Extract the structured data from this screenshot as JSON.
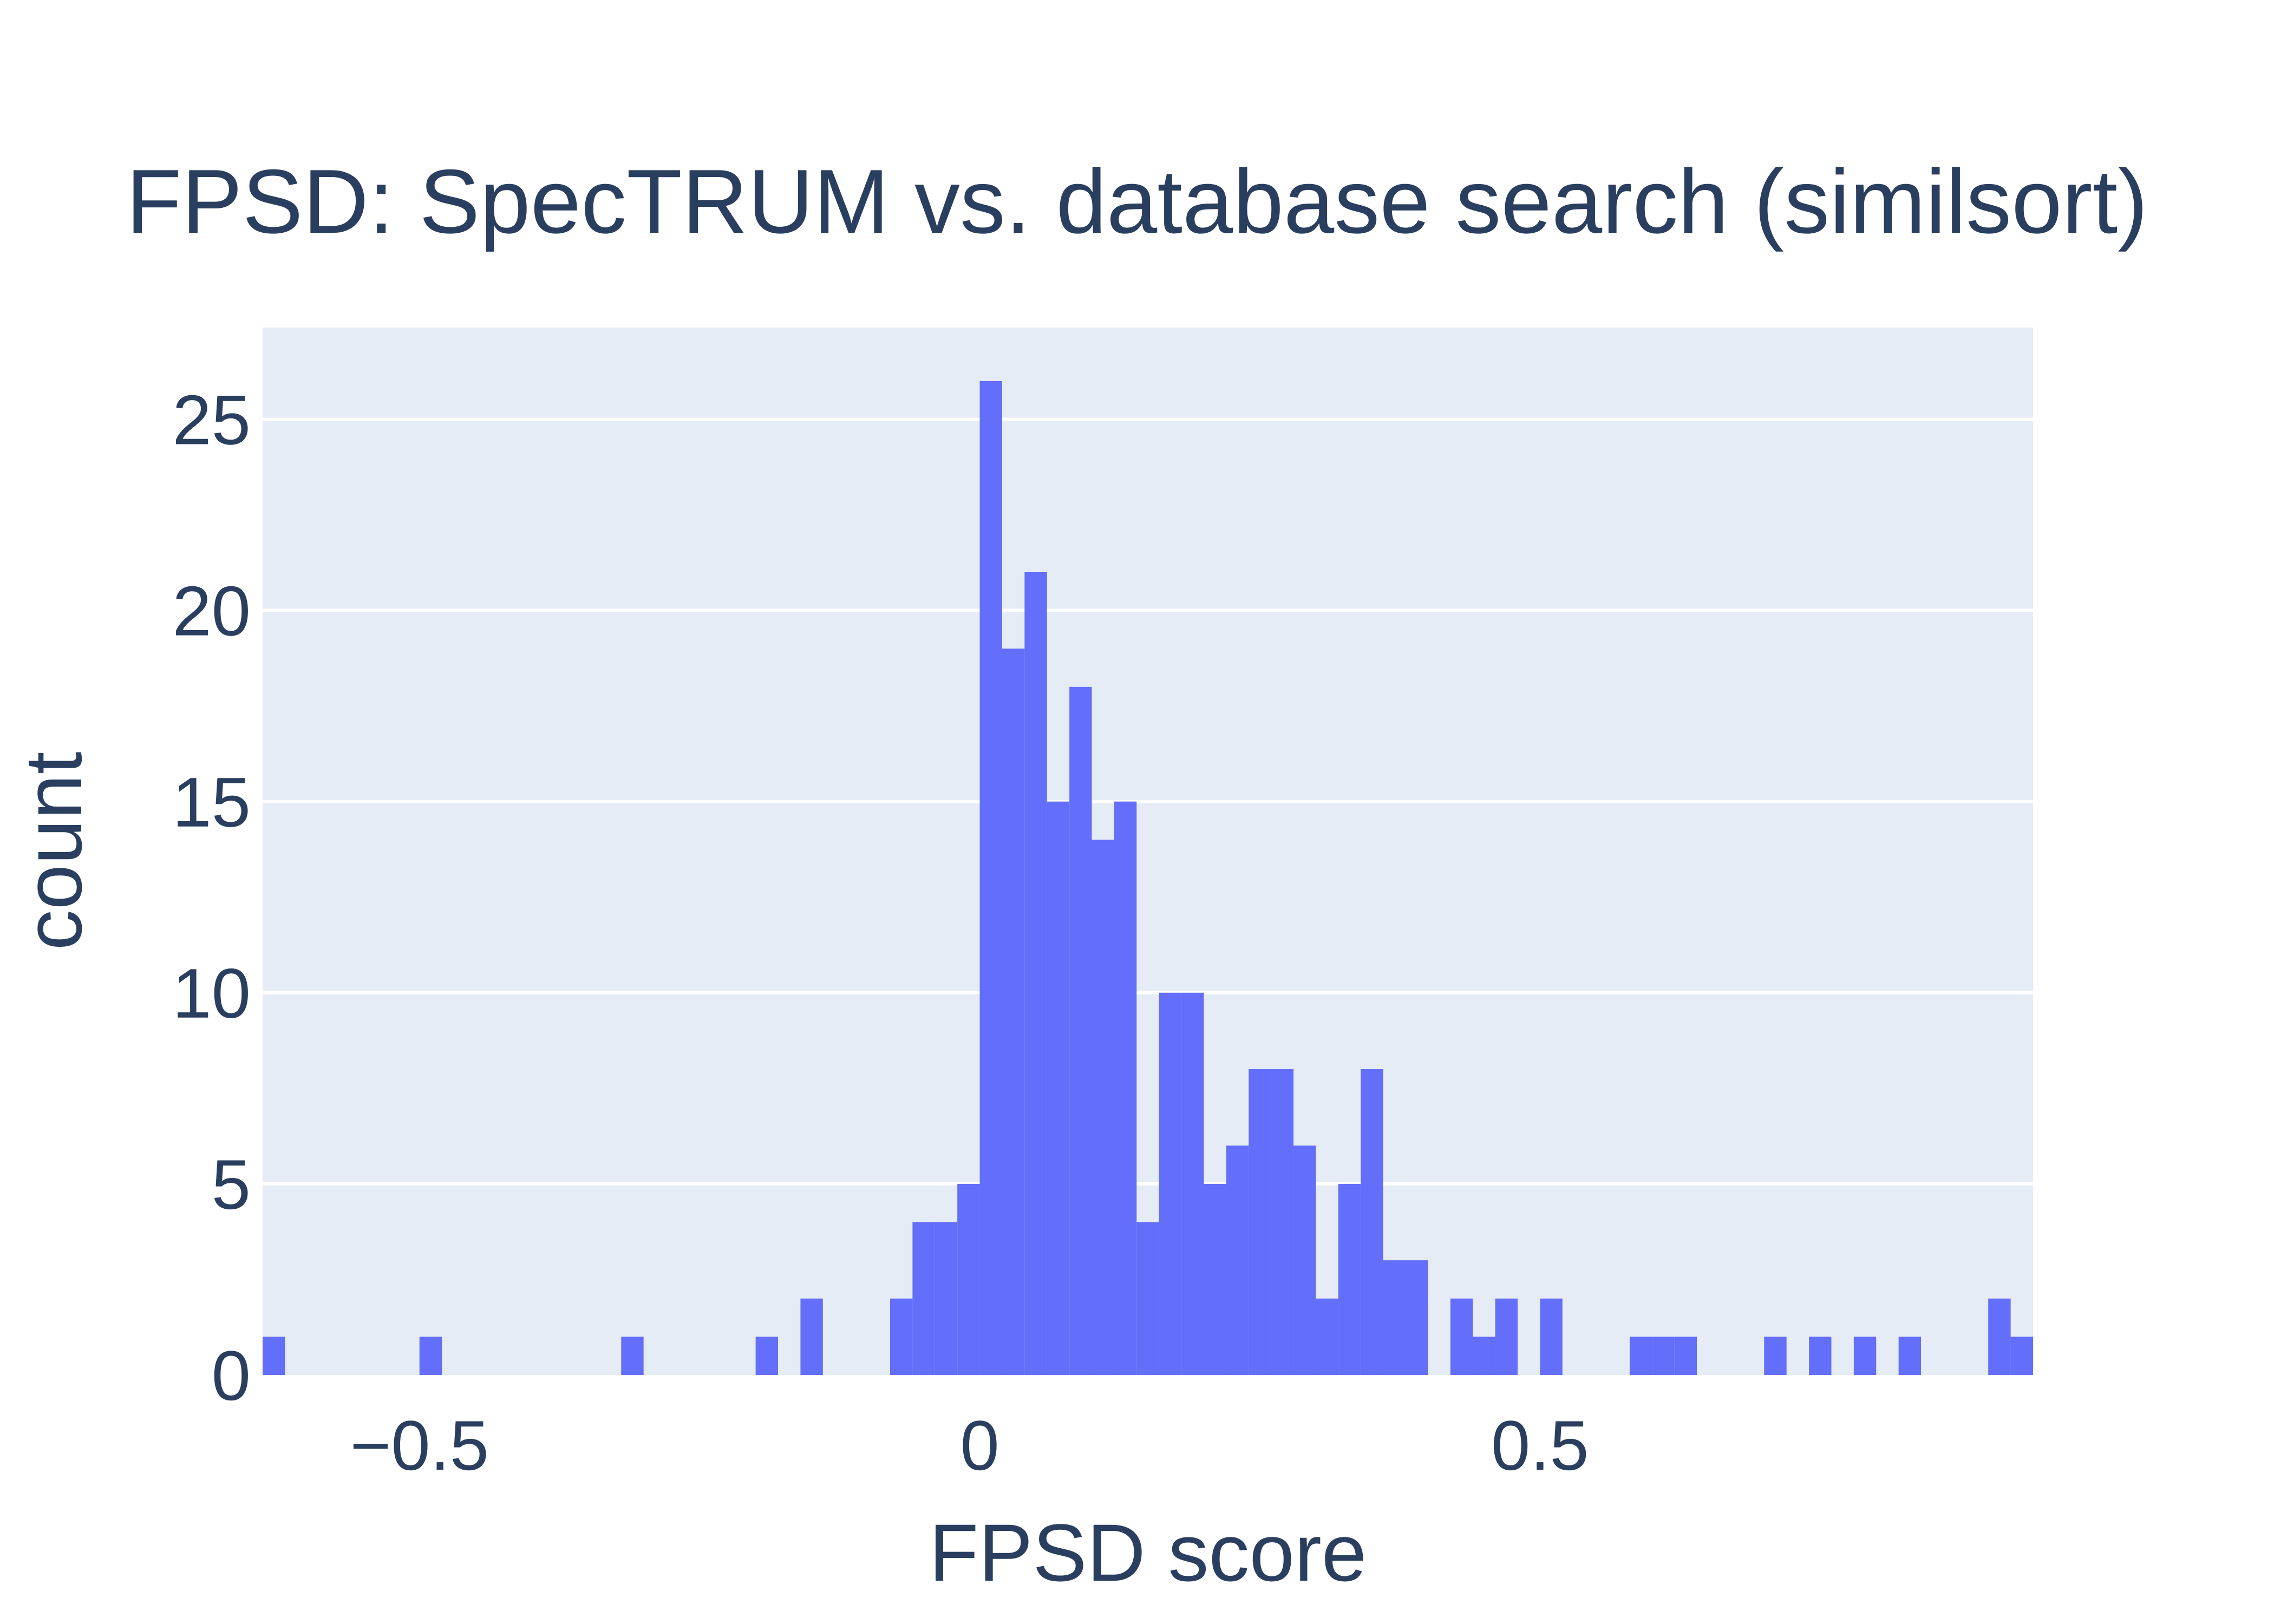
{
  "chart_data": {
    "type": "bar",
    "title": "FPSD: SpecTRUM vs. database search (similsort)",
    "xlabel": "FPSD score",
    "ylabel": "count",
    "xlim": [
      -0.64,
      0.94
    ],
    "ylim": [
      0,
      27.4
    ],
    "bin_width": 0.02,
    "x_ticks": [
      -0.5,
      0,
      0.5
    ],
    "x_tick_labels": [
      "−0.5",
      "0",
      "0.5"
    ],
    "y_ticks": [
      0,
      5,
      10,
      15,
      20,
      25
    ],
    "y_tick_labels": [
      "0",
      "5",
      "10",
      "15",
      "20",
      "25"
    ],
    "grid": true,
    "bar_color": "#636efa",
    "plot_bg": "#e5ecf6",
    "bins": [
      {
        "x0": -0.64,
        "count": 1
      },
      {
        "x0": -0.5,
        "count": 1
      },
      {
        "x0": -0.32,
        "count": 1
      },
      {
        "x0": -0.2,
        "count": 1
      },
      {
        "x0": -0.16,
        "count": 2
      },
      {
        "x0": -0.08,
        "count": 2
      },
      {
        "x0": -0.06,
        "count": 4
      },
      {
        "x0": -0.04,
        "count": 4
      },
      {
        "x0": -0.02,
        "count": 5
      },
      {
        "x0": 0.0,
        "count": 26
      },
      {
        "x0": 0.02,
        "count": 19
      },
      {
        "x0": 0.04,
        "count": 21
      },
      {
        "x0": 0.06,
        "count": 15
      },
      {
        "x0": 0.08,
        "count": 18
      },
      {
        "x0": 0.1,
        "count": 14
      },
      {
        "x0": 0.12,
        "count": 15
      },
      {
        "x0": 0.14,
        "count": 4
      },
      {
        "x0": 0.16,
        "count": 10
      },
      {
        "x0": 0.18,
        "count": 10
      },
      {
        "x0": 0.2,
        "count": 5
      },
      {
        "x0": 0.22,
        "count": 6
      },
      {
        "x0": 0.24,
        "count": 8
      },
      {
        "x0": 0.26,
        "count": 8
      },
      {
        "x0": 0.28,
        "count": 6
      },
      {
        "x0": 0.3,
        "count": 2
      },
      {
        "x0": 0.32,
        "count": 5
      },
      {
        "x0": 0.34,
        "count": 8
      },
      {
        "x0": 0.36,
        "count": 3
      },
      {
        "x0": 0.38,
        "count": 3
      },
      {
        "x0": 0.42,
        "count": 2
      },
      {
        "x0": 0.44,
        "count": 1
      },
      {
        "x0": 0.46,
        "count": 2
      },
      {
        "x0": 0.5,
        "count": 2
      },
      {
        "x0": 0.58,
        "count": 1
      },
      {
        "x0": 0.6,
        "count": 1
      },
      {
        "x0": 0.62,
        "count": 1
      },
      {
        "x0": 0.7,
        "count": 1
      },
      {
        "x0": 0.74,
        "count": 1
      },
      {
        "x0": 0.78,
        "count": 1
      },
      {
        "x0": 0.82,
        "count": 1
      },
      {
        "x0": 0.9,
        "count": 2
      },
      {
        "x0": 0.92,
        "count": 1
      }
    ]
  }
}
